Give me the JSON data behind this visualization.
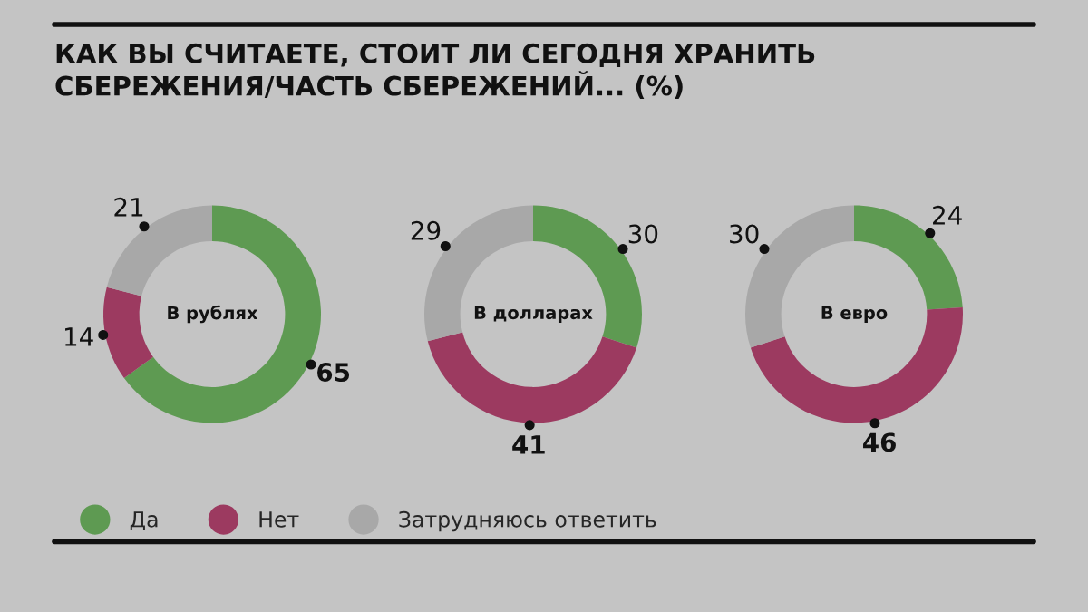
{
  "chart_data": [
    {
      "type": "donut",
      "title": "КАК ВЫ СЧИТАЕТЕ, СТОИТ ЛИ СЕГОДНЯ ХРАНИТЬ\nСБЕРЕЖЕНИЯ/ЧАСТЬ СБЕРЕЖЕНИЙ... (%)",
      "subtitle": "В рублях",
      "categories": [
        "Да",
        "Нет",
        "Затрудняюсь ответить"
      ],
      "values": [
        65,
        14,
        21
      ],
      "colors": [
        "#5e9a52",
        "#9c3a60",
        "#a8a8a8"
      ],
      "data_labels": true,
      "legend": "bottom"
    },
    {
      "type": "donut",
      "subtitle": "В долларах",
      "categories": [
        null,
        null,
        null
      ],
      "values": [
        30,
        41,
        29
      ],
      "colors": [
        "#5e9a52",
        "#9c3a60",
        "#a8a8a8"
      ],
      "data_labels": true
    },
    {
      "type": "donut",
      "subtitle": "В евро",
      "categories": [
        null,
        null,
        null
      ],
      "values": [
        24,
        46,
        30
      ],
      "colors": [
        "#5e9a52",
        "#9c3a60",
        "#a8a8a8"
      ],
      "data_labels": true
    }
  ]
}
